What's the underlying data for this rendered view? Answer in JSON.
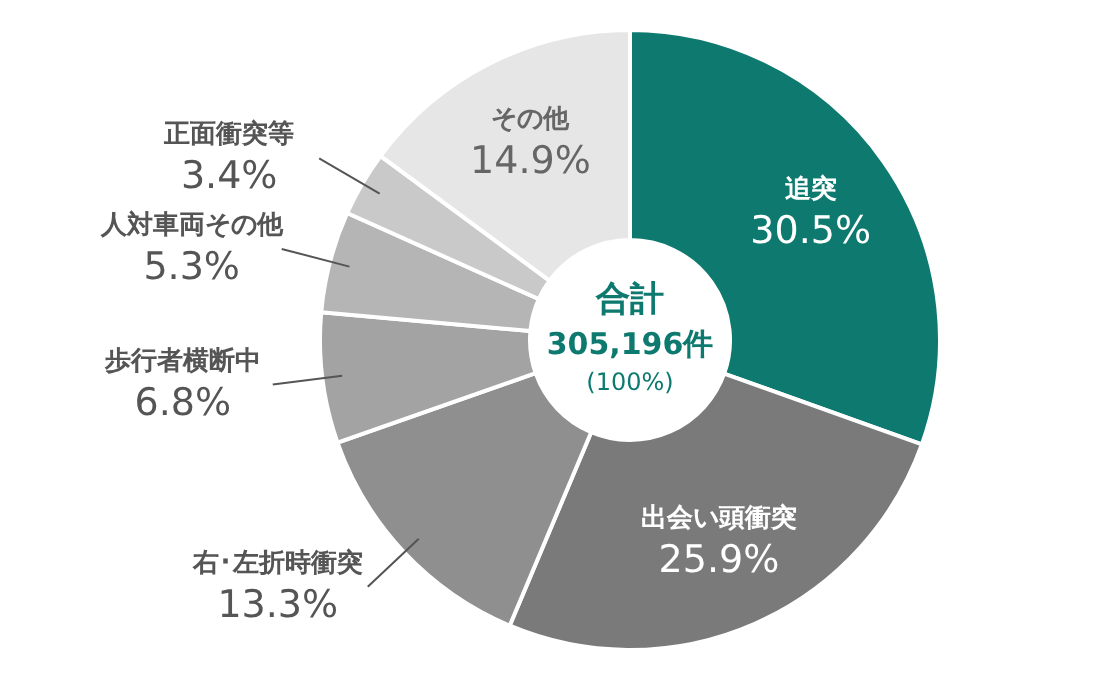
{
  "chart_data": {
    "type": "donut",
    "categories": [
      "追突",
      "出会い頭衝突",
      "右･左折時衝突",
      "歩行者横断中",
      "人対車両その他",
      "正面衝突等",
      "その他"
    ],
    "values": [
      30.5,
      25.9,
      13.3,
      6.8,
      5.3,
      3.4,
      14.9
    ],
    "colors": [
      "#0e7a6f",
      "#7a7a7a",
      "#8f8f8f",
      "#a3a3a3",
      "#b5b5b5",
      "#c9c9c9",
      "#e6e6e6"
    ],
    "value_labels": [
      "30.5%",
      "25.9%",
      "13.3%",
      "6.8%",
      "5.3%",
      "3.4%",
      "14.9%"
    ],
    "annotations": [
      "合計",
      "305,196件",
      "(100%)"
    ]
  }
}
